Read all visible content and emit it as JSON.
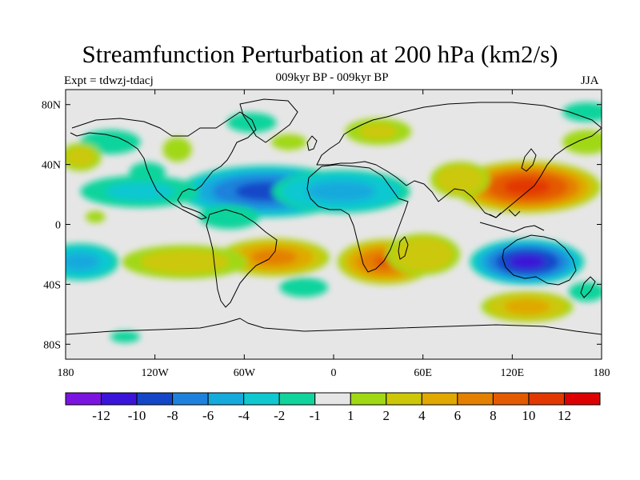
{
  "title": "Streamfunction Perturbation at 200 hPa (km2/s)",
  "subtitle": "009kyr BP - 009kyr BP",
  "expt_label": "Expt = tdwzj-tdacj",
  "season": "JJA",
  "map": {
    "projection": "cylindrical-equidistant",
    "lon_range": [
      -180,
      180
    ],
    "lat_range": [
      -90,
      90
    ],
    "x_ticks": [
      {
        "lon": -180,
        "label": "180"
      },
      {
        "lon": -120,
        "label": "120W"
      },
      {
        "lon": -60,
        "label": "60W"
      },
      {
        "lon": 0,
        "label": "0"
      },
      {
        "lon": 60,
        "label": "60E"
      },
      {
        "lon": 120,
        "label": "120E"
      },
      {
        "lon": 180,
        "label": "180"
      }
    ],
    "y_ticks": [
      {
        "lat": 80,
        "label": "80N"
      },
      {
        "lat": 40,
        "label": "40N"
      },
      {
        "lat": 0,
        "label": "0"
      },
      {
        "lat": -40,
        "label": "40S"
      },
      {
        "lat": -80,
        "label": "80S"
      }
    ],
    "background_color": "#e6e6e6",
    "fields": [
      {
        "name": "n-atlantic-low",
        "lon": -45,
        "lat": 22,
        "rlon": 55,
        "rlat": 16,
        "value": -9
      },
      {
        "name": "n-africa-low",
        "lon": 5,
        "lat": 22,
        "rlon": 45,
        "rlat": 14,
        "value": -5
      },
      {
        "name": "n-pacific-low",
        "lon": -130,
        "lat": 22,
        "rlon": 45,
        "rlat": 12,
        "value": -2.5
      },
      {
        "name": "alaska-low",
        "lon": -150,
        "lat": 55,
        "rlon": 25,
        "rlat": 10,
        "value": -2
      },
      {
        "name": "e-pacific-low",
        "lon": -70,
        "lat": 5,
        "rlon": 25,
        "rlat": 10,
        "value": -2
      },
      {
        "name": "s-pacific-low",
        "lon": -170,
        "lat": -25,
        "rlon": 25,
        "rlat": 12,
        "value": -5
      },
      {
        "name": "s-atlantic-low",
        "lon": -20,
        "lat": -42,
        "rlon": 20,
        "rlat": 8,
        "value": -2
      },
      {
        "name": "greenland-low",
        "lon": -55,
        "lat": 68,
        "rlon": 25,
        "rlat": 10,
        "value": -1.5
      },
      {
        "name": "australia-low",
        "lon": 130,
        "lat": -25,
        "rlon": 35,
        "rlat": 14,
        "value": -11
      },
      {
        "name": "asia-high",
        "lon": 130,
        "lat": 25,
        "rlon": 45,
        "rlat": 16,
        "value": 11
      },
      {
        "name": "himalaya-high",
        "lon": 85,
        "lat": 30,
        "rlon": 20,
        "rlat": 12,
        "value": 4
      },
      {
        "name": "s-america-high",
        "lon": -40,
        "lat": -22,
        "rlon": 35,
        "rlat": 12,
        "value": 7
      },
      {
        "name": "s-africa-high",
        "lon": 35,
        "lat": -25,
        "rlon": 30,
        "rlat": 14,
        "value": 8.5
      },
      {
        "name": "s-indian-high",
        "lon": 60,
        "lat": -20,
        "rlon": 25,
        "rlat": 14,
        "value": 4
      },
      {
        "name": "s-pacific-high",
        "lon": -100,
        "lat": -25,
        "rlon": 45,
        "rlat": 12,
        "value": 3
      },
      {
        "name": "southern-ocean-high",
        "lon": 130,
        "lat": -55,
        "rlon": 30,
        "rlat": 10,
        "value": 5
      },
      {
        "name": "europe-high",
        "lon": 30,
        "lat": 62,
        "rlon": 25,
        "rlat": 10,
        "value": 2.5
      },
      {
        "name": "n-atlantic-high",
        "lon": -30,
        "lat": 55,
        "rlon": 18,
        "rlat": 8,
        "value": 1.5
      },
      {
        "name": "n-america-high",
        "lon": -105,
        "lat": 50,
        "rlon": 12,
        "rlat": 10,
        "value": 2
      },
      {
        "name": "ne-asia-high",
        "lon": 170,
        "lat": 55,
        "rlon": 20,
        "rlat": 10,
        "value": 2
      },
      {
        "name": "w-pacific-high",
        "lon": -170,
        "lat": 45,
        "rlon": 15,
        "rlat": 10,
        "value": 3
      },
      {
        "name": "hawaii-high",
        "lon": -160,
        "lat": 5,
        "rlon": 10,
        "rlat": 6,
        "value": 1.5
      },
      {
        "name": "arctic-low",
        "lon": 170,
        "lat": 75,
        "rlon": 20,
        "rlat": 8,
        "value": -2
      },
      {
        "name": "n-america-low",
        "lon": -125,
        "lat": 35,
        "rlon": 15,
        "rlat": 8,
        "value": -2
      },
      {
        "name": "antarctic-low",
        "lon": -140,
        "lat": -75,
        "rlon": 15,
        "rlat": 6,
        "value": -1.5
      },
      {
        "name": "se-indian-low",
        "lon": 170,
        "lat": -45,
        "rlon": 15,
        "rlat": 8,
        "value": -2
      }
    ]
  },
  "colorbar": {
    "colors": [
      "#7b14e0",
      "#3a14d8",
      "#1446c8",
      "#1e82dc",
      "#14aadc",
      "#10c8d0",
      "#10d49c",
      "#e6e6e6",
      "#a0d814",
      "#ccc808",
      "#e0a800",
      "#e48000",
      "#e45a00",
      "#e23800",
      "#dc0000"
    ],
    "bounds": [
      -100,
      -12,
      -10,
      -8,
      -6,
      -4,
      -2,
      -1,
      1,
      2,
      4,
      6,
      8,
      10,
      12,
      100
    ],
    "labels": [
      "-12",
      "-10",
      "-8",
      "-6",
      "-4",
      "-2",
      "-1",
      "1",
      "2",
      "4",
      "6",
      "8",
      "10",
      "12"
    ]
  }
}
